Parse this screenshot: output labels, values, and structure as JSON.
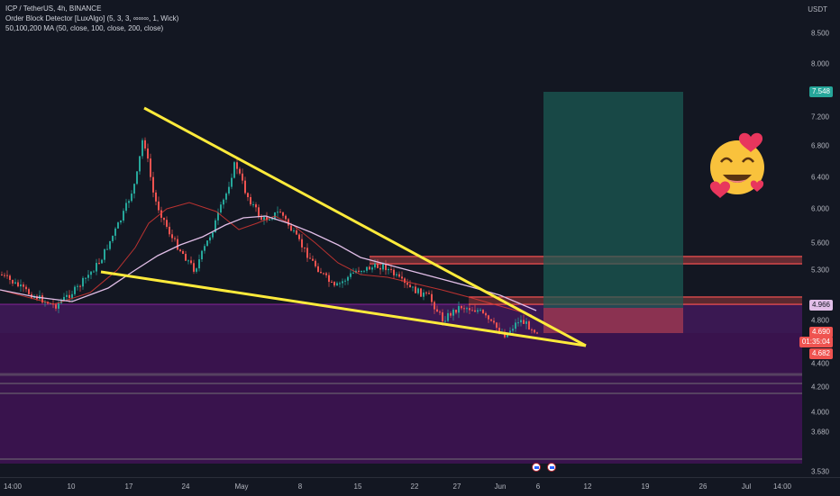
{
  "legend": {
    "symbol_line": "ICP / TetherUS, 4h, BINANCE",
    "indicator1": "Order Block Detector [LuxAlgo] (5, 3, 3, ∞∞∞, 1, Wick)",
    "indicator2": "50,100,200 MA (50, close, 100, close, 200, close)"
  },
  "price_axis": {
    "unit": "USDT",
    "labels": [
      "8.500",
      "8.000",
      "7.200",
      "6.800",
      "6.400",
      "6.000",
      "5.600",
      "5.300",
      "4.800",
      "4.400",
      "4.200",
      "4.000",
      "3.680",
      "3.530"
    ],
    "badge_target": "7.548",
    "badge_ma": "4.966",
    "badge_last": "4.690",
    "badge_countdown": "01:35:04",
    "badge_low": "4.682"
  },
  "time_axis": {
    "labels": [
      "14:00",
      "10",
      "17",
      "24",
      "May",
      "8",
      "15",
      "22",
      "27",
      "Jun",
      "6",
      "12",
      "19",
      "26",
      "Jul",
      "14:00"
    ]
  },
  "colors": {
    "background": "#131722",
    "bull": "#26a69a",
    "bear": "#ef5350",
    "trendline": "#ffeb3b",
    "ma50": "#e53935",
    "ma200": "#e1bee7",
    "order_block_bear": "#ff5252",
    "order_block_zone": "#6a1b9a",
    "target_zone": "#1b5e55"
  },
  "icons": [
    "smiling-face-with-hearts-icon",
    "economic-event-icon"
  ]
}
